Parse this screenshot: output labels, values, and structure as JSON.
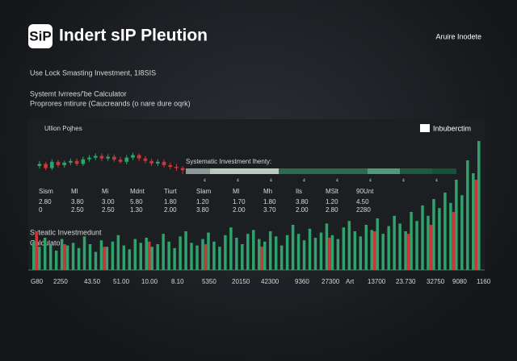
{
  "header": {
    "logo": "SiP",
    "title": "Indert sIP Pleution",
    "action": "Aruire Inodete"
  },
  "intro": {
    "line": "Use Lock Smasting Investment, 1I8SIS",
    "heading": "Systemt Ivrrees/'be Calculator",
    "subheading": "Proprores mtirure (Caucreands (o nare dure oqrk)"
  },
  "panel": {
    "title": "Ullion Pojhes",
    "legend": "Inbuberctim",
    "progress_label": "Systematic Investment lhenty:",
    "progress_marks": [
      "4",
      "4",
      "4",
      "4",
      "4",
      "4",
      "4",
      "4"
    ],
    "table": {
      "header": [
        "Sism",
        "Ml",
        "Mi",
        "Mdnt",
        "Tiurt",
        "Slam",
        "Ml",
        "Mh",
        "Ils",
        "MSlt",
        "90Unt"
      ],
      "rows": [
        [
          "2.80",
          "3.80",
          "3.00",
          "5.80",
          "1.80",
          "1.20",
          "1.70",
          "1.80",
          "3.80",
          "1.20",
          "4.50"
        ],
        [
          "0",
          "2.50",
          "2.50",
          "1.30",
          "2.00",
          "3.80",
          "2.00",
          "3.70",
          "2.00",
          "2.80",
          "2280"
        ]
      ]
    },
    "volume_title": "Syteatic Investmedunt",
    "volume_subtitle": "Calculator",
    "x_labels": [
      "G80",
      "2250",
      "43.50",
      "51.00",
      "10.00",
      "8.10",
      "5350",
      "20150",
      "42300",
      "9360",
      "27300",
      "Art",
      "13700",
      "23.730",
      "32750",
      "9080",
      "1160"
    ]
  },
  "chart_data": [
    {
      "type": "candlestick",
      "ylim": [
        0,
        100
      ],
      "up_color": "#2fa36b",
      "down_color": "#c9373c",
      "open": [
        50,
        55,
        45,
        60,
        52,
        58,
        62,
        55,
        66,
        70,
        74,
        68,
        72,
        65,
        60,
        70,
        76,
        68,
        62,
        56,
        60,
        52,
        48,
        45
      ],
      "close": [
        55,
        45,
        60,
        52,
        58,
        62,
        55,
        66,
        70,
        74,
        68,
        72,
        65,
        60,
        70,
        76,
        68,
        62,
        56,
        60,
        52,
        48,
        45,
        40
      ],
      "high": [
        62,
        60,
        66,
        65,
        63,
        68,
        68,
        72,
        76,
        80,
        80,
        78,
        78,
        72,
        76,
        82,
        80,
        74,
        68,
        66,
        66,
        58,
        55,
        50
      ],
      "low": [
        44,
        40,
        40,
        46,
        46,
        52,
        50,
        50,
        60,
        64,
        62,
        62,
        60,
        56,
        54,
        64,
        62,
        56,
        50,
        50,
        46,
        42,
        38,
        30
      ]
    },
    {
      "type": "bar",
      "ylim": [
        0,
        100
      ],
      "series": [
        {
          "color": "#2fa36b",
          "values": [
            22,
            18,
            25,
            20,
            15,
            24,
            19,
            21,
            17,
            26,
            20,
            14,
            23,
            18,
            22,
            27,
            19,
            16,
            24,
            21,
            25,
            18,
            20,
            28,
            22,
            17,
            26,
            30,
            21,
            19,
            24,
            29,
            22,
            18,
            27,
            33,
            25,
            20,
            28,
            31,
            24,
            22,
            30,
            26,
            19,
            27,
            35,
            28,
            23,
            32,
            25,
            29,
            36,
            27,
            24,
            33,
            38,
            30,
            26,
            35,
            31,
            40,
            28,
            34,
            42,
            36,
            30,
            45,
            38,
            50,
            42,
            55,
            48,
            60,
            52,
            70,
            58,
            85,
            75,
            100
          ]
        },
        {
          "color": "#c9373c",
          "x": [
            0,
            5,
            12,
            20,
            30,
            40,
            52,
            60,
            66,
            70,
            74,
            78
          ],
          "values": [
            30,
            20,
            18,
            22,
            20,
            18,
            25,
            30,
            28,
            35,
            45,
            70
          ]
        }
      ]
    }
  ]
}
